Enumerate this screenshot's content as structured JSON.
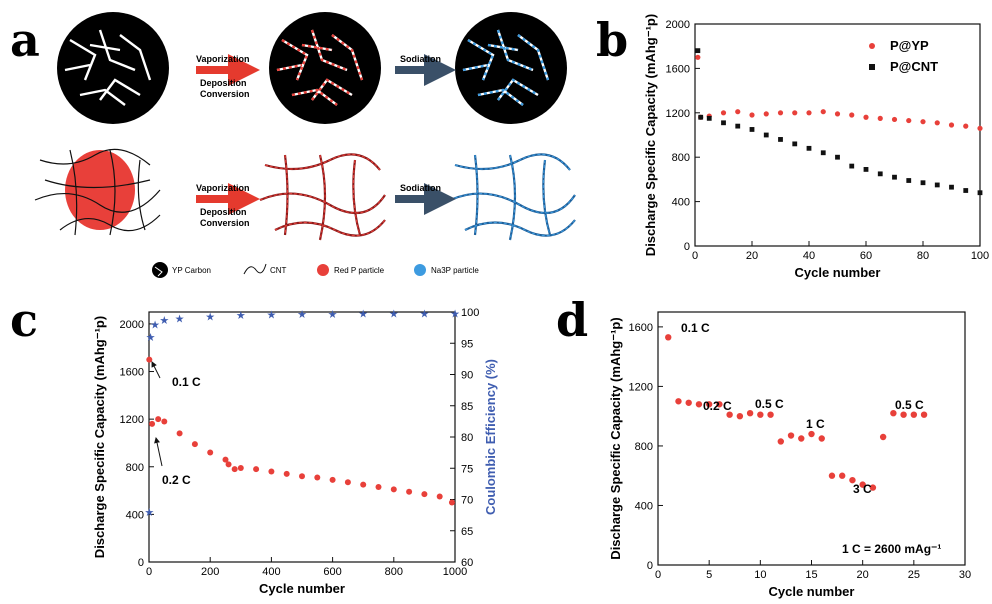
{
  "panel_labels": {
    "a": "a",
    "b": "b",
    "c": "c",
    "d": "d"
  },
  "colors": {
    "red": "#e8403a",
    "black": "#111111",
    "blue": "#3f5db0",
    "lightblue": "#3d9be0",
    "arrow_red": "#e53a2e",
    "arrow_dark": "#3a5068"
  },
  "schematic": {
    "step1_line1": "Vaporization",
    "step1_line2": "Deposition",
    "step1_line3": "Conversion",
    "step2": "Sodiation",
    "legend": {
      "yp": "YP Carbon",
      "cnt": "CNT",
      "redp": "Red P particle",
      "na3p": "Na3P particle"
    }
  },
  "chart_data": [
    {
      "id": "b",
      "type": "scatter",
      "xlabel": "Cycle number",
      "ylabel": "Discharge Specific Capacity (mAhg⁻¹p)",
      "xlim": [
        0,
        100
      ],
      "ylim": [
        0,
        2000
      ],
      "xticks": [
        0,
        20,
        40,
        60,
        80,
        100
      ],
      "yticks": [
        0,
        400,
        800,
        1200,
        1600,
        2000
      ],
      "legend_position": "top-right",
      "series": [
        {
          "name": "P@YP",
          "color": "red",
          "marker": "circle",
          "points": [
            [
              1,
              1700
            ],
            [
              2,
              1160
            ],
            [
              5,
              1170
            ],
            [
              10,
              1200
            ],
            [
              15,
              1210
            ],
            [
              20,
              1180
            ],
            [
              25,
              1190
            ],
            [
              30,
              1200
            ],
            [
              35,
              1200
            ],
            [
              40,
              1200
            ],
            [
              45,
              1210
            ],
            [
              50,
              1190
            ],
            [
              55,
              1180
            ],
            [
              60,
              1160
            ],
            [
              65,
              1150
            ],
            [
              70,
              1140
            ],
            [
              75,
              1130
            ],
            [
              80,
              1120
            ],
            [
              85,
              1110
            ],
            [
              90,
              1090
            ],
            [
              95,
              1080
            ],
            [
              100,
              1060
            ]
          ]
        },
        {
          "name": "P@CNT",
          "color": "black",
          "marker": "square",
          "points": [
            [
              1,
              1760
            ],
            [
              2,
              1160
            ],
            [
              5,
              1150
            ],
            [
              10,
              1110
            ],
            [
              15,
              1080
            ],
            [
              20,
              1050
            ],
            [
              25,
              1000
            ],
            [
              30,
              960
            ],
            [
              35,
              920
            ],
            [
              40,
              880
            ],
            [
              45,
              840
            ],
            [
              50,
              800
            ],
            [
              55,
              720
            ],
            [
              60,
              690
            ],
            [
              65,
              650
            ],
            [
              70,
              620
            ],
            [
              75,
              590
            ],
            [
              80,
              570
            ],
            [
              85,
              550
            ],
            [
              90,
              530
            ],
            [
              95,
              500
            ],
            [
              100,
              480
            ]
          ]
        }
      ]
    },
    {
      "id": "c",
      "type": "scatter",
      "xlabel": "Cycle number",
      "ylabel": "Discharge Specific Capacity (mAhg⁻¹p)",
      "y2label": "Coulombic Efficiency (%)",
      "xlim": [
        0,
        1000
      ],
      "ylim": [
        0,
        2100
      ],
      "y2lim": [
        60,
        100
      ],
      "xticks": [
        0,
        200,
        400,
        600,
        800,
        1000
      ],
      "yticks": [
        0,
        400,
        800,
        1200,
        1600,
        2000
      ],
      "y2ticks": [
        60,
        65,
        70,
        75,
        80,
        85,
        90,
        95,
        100
      ],
      "annotations": [
        "0.1 C",
        "0.2 C"
      ],
      "series": [
        {
          "name": "Capacity",
          "color": "red",
          "points": [
            [
              1,
              1700
            ],
            [
              10,
              1160
            ],
            [
              30,
              1200
            ],
            [
              50,
              1180
            ],
            [
              100,
              1080
            ],
            [
              150,
              990
            ],
            [
              200,
              920
            ],
            [
              250,
              860
            ],
            [
              260,
              820
            ],
            [
              280,
              780
            ],
            [
              300,
              790
            ],
            [
              350,
              780
            ],
            [
              400,
              760
            ],
            [
              450,
              740
            ],
            [
              500,
              720
            ],
            [
              550,
              710
            ],
            [
              600,
              690
            ],
            [
              650,
              670
            ],
            [
              700,
              650
            ],
            [
              750,
              630
            ],
            [
              800,
              610
            ],
            [
              850,
              590
            ],
            [
              900,
              570
            ],
            [
              950,
              550
            ],
            [
              990,
              500
            ]
          ]
        },
        {
          "name": "Coulombic efficiency",
          "color": "blue",
          "points": [
            [
              1,
              68
            ],
            [
              5,
              96
            ],
            [
              20,
              98
            ],
            [
              50,
              98.7
            ],
            [
              100,
              99
            ],
            [
              200,
              99.3
            ],
            [
              300,
              99.5
            ],
            [
              400,
              99.6
            ],
            [
              500,
              99.7
            ],
            [
              600,
              99.7
            ],
            [
              700,
              99.8
            ],
            [
              800,
              99.8
            ],
            [
              900,
              99.8
            ],
            [
              1000,
              99.8
            ]
          ]
        }
      ]
    },
    {
      "id": "d",
      "type": "scatter",
      "xlabel": "Cycle number",
      "ylabel": "Discharge Specific Capacity (mAhg⁻¹p)",
      "xlim": [
        0,
        30
      ],
      "ylim": [
        0,
        1700
      ],
      "xticks": [
        0,
        5,
        10,
        15,
        20,
        25,
        30
      ],
      "yticks": [
        0,
        400,
        800,
        1200,
        1600
      ],
      "rate_labels": [
        "0.1 C",
        "0.2 C",
        "0.5 C",
        "1 C",
        "3 C",
        "0.5 C"
      ],
      "note": "1 C = 2600 mAg⁻¹",
      "series": [
        {
          "name": "Capacity",
          "color": "red",
          "points": [
            [
              1,
              1530
            ],
            [
              2,
              1100
            ],
            [
              3,
              1090
            ],
            [
              4,
              1080
            ],
            [
              5,
              1080
            ],
            [
              6,
              1080
            ],
            [
              7,
              1010
            ],
            [
              8,
              1000
            ],
            [
              9,
              1020
            ],
            [
              10,
              1010
            ],
            [
              11,
              1010
            ],
            [
              12,
              830
            ],
            [
              13,
              870
            ],
            [
              14,
              850
            ],
            [
              15,
              880
            ],
            [
              16,
              850
            ],
            [
              17,
              600
            ],
            [
              18,
              600
            ],
            [
              19,
              570
            ],
            [
              20,
              540
            ],
            [
              21,
              520
            ],
            [
              22,
              860
            ],
            [
              23,
              1020
            ],
            [
              24,
              1010
            ],
            [
              25,
              1010
            ],
            [
              26,
              1010
            ]
          ]
        }
      ]
    }
  ]
}
